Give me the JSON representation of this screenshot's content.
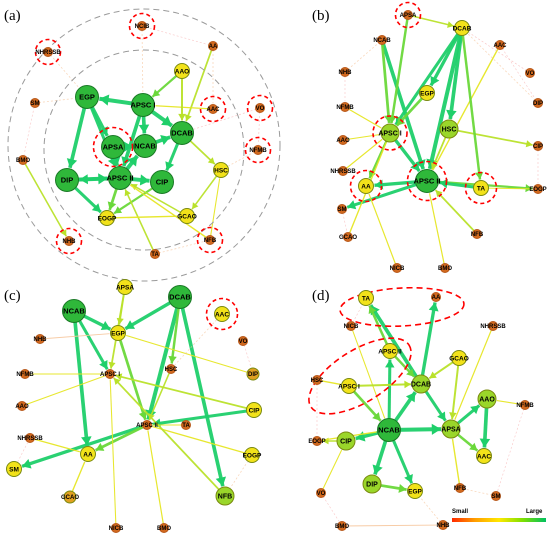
{
  "figure": {
    "legend": {
      "small_label": "Small",
      "large_label": "Large",
      "colors": [
        "#ff2a00",
        "#ffa000",
        "#ffe800",
        "#7fe000",
        "#00c060"
      ]
    },
    "palette": {
      "big": "#2fb83a",
      "mid": "#9ad62a",
      "small": "#f2e21a",
      "tiny": "#e0a020",
      "dot": "#d2691e",
      "highlight": "#ff0000"
    },
    "panels": [
      {
        "label": "(a)",
        "nodes": [
          {
            "id": "NCIB",
            "size": "dot",
            "hl": true
          },
          {
            "id": "AA",
            "size": "dot"
          },
          {
            "id": "NHRSSB",
            "size": "dot",
            "hl": true
          },
          {
            "id": "AAO",
            "size": "small"
          },
          {
            "id": "EGP",
            "size": "big"
          },
          {
            "id": "APSC I",
            "size": "big"
          },
          {
            "id": "SM",
            "size": "dot"
          },
          {
            "id": "AAC",
            "size": "dot",
            "hl": true
          },
          {
            "id": "VO",
            "size": "dot",
            "hl": true
          },
          {
            "id": "DCAB",
            "size": "big"
          },
          {
            "id": "APSA",
            "size": "big",
            "hl": true
          },
          {
            "id": "NCAB",
            "size": "big"
          },
          {
            "id": "NFMB",
            "size": "dot",
            "hl": true
          },
          {
            "id": "BMO",
            "size": "dot"
          },
          {
            "id": "APSC II",
            "size": "big"
          },
          {
            "id": "DIP",
            "size": "big"
          },
          {
            "id": "CIP",
            "size": "big"
          },
          {
            "id": "HSC",
            "size": "small"
          },
          {
            "id": "EOGP",
            "size": "small"
          },
          {
            "id": "GCAO",
            "size": "small"
          },
          {
            "id": "NHB",
            "size": "dot",
            "hl": true
          },
          {
            "id": "TA",
            "size": "dot"
          },
          {
            "id": "NFB",
            "size": "dot",
            "hl": true
          }
        ]
      },
      {
        "label": "(b)",
        "nodes": [
          {
            "id": "APSA",
            "size": "dot",
            "hl": true
          },
          {
            "id": "DCAB",
            "size": "small"
          },
          {
            "id": "NCAB",
            "size": "dot"
          },
          {
            "id": "AAC",
            "size": "dot"
          },
          {
            "id": "VO",
            "size": "dot"
          },
          {
            "id": "NHB",
            "size": "dot"
          },
          {
            "id": "EGP",
            "size": "small"
          },
          {
            "id": "DIP",
            "size": "dot"
          },
          {
            "id": "NFMB",
            "size": "dot"
          },
          {
            "id": "APSC I",
            "size": "mid",
            "hl": true
          },
          {
            "id": "HSC",
            "size": "mid"
          },
          {
            "id": "AAO",
            "size": "dot"
          },
          {
            "id": "CIP",
            "size": "dot"
          },
          {
            "id": "NHRSSB",
            "size": "dot"
          },
          {
            "id": "APSC II",
            "size": "big",
            "hl": true
          },
          {
            "id": "AA",
            "size": "small",
            "hl": true
          },
          {
            "id": "TA",
            "size": "small",
            "hl": true
          },
          {
            "id": "EOGP",
            "size": "dot"
          },
          {
            "id": "SM",
            "size": "dot"
          },
          {
            "id": "NFB",
            "size": "dot"
          },
          {
            "id": "GCAO",
            "size": "dot"
          },
          {
            "id": "NICB",
            "size": "dot"
          },
          {
            "id": "BMO",
            "size": "dot"
          }
        ]
      },
      {
        "label": "(c)",
        "nodes": [
          {
            "id": "APSA",
            "size": "small"
          },
          {
            "id": "NCAB",
            "size": "big"
          },
          {
            "id": "DCAB",
            "size": "big"
          },
          {
            "id": "AAC",
            "size": "small",
            "hl": true
          },
          {
            "id": "NHB",
            "size": "dot"
          },
          {
            "id": "EGP",
            "size": "small"
          },
          {
            "id": "VO",
            "size": "dot"
          },
          {
            "id": "DIP",
            "size": "tiny"
          },
          {
            "id": "NFMB",
            "size": "dot"
          },
          {
            "id": "HSC",
            "size": "dot"
          },
          {
            "id": "APSC I",
            "size": "dot"
          },
          {
            "id": "AAO",
            "size": "dot"
          },
          {
            "id": "CIP",
            "size": "small"
          },
          {
            "id": "NHRSSB",
            "size": "dot"
          },
          {
            "id": "APSC II",
            "size": "dot"
          },
          {
            "id": "TA",
            "size": "dot"
          },
          {
            "id": "EOGP",
            "size": "small"
          },
          {
            "id": "AA",
            "size": "small"
          },
          {
            "id": "SM",
            "size": "small"
          },
          {
            "id": "GCAO",
            "size": "tiny"
          },
          {
            "id": "NFB",
            "size": "mid"
          },
          {
            "id": "NICB",
            "size": "dot"
          },
          {
            "id": "BMO",
            "size": "dot"
          }
        ]
      },
      {
        "label": "(d)",
        "nodes": [
          {
            "id": "TA",
            "size": "small"
          },
          {
            "id": "AA",
            "size": "dot"
          },
          {
            "id": "NICB",
            "size": "dot"
          },
          {
            "id": "NHRSSB",
            "size": "dot"
          },
          {
            "id": "APSC II",
            "size": "small"
          },
          {
            "id": "GCAO",
            "size": "small"
          },
          {
            "id": "HSC",
            "size": "dot"
          },
          {
            "id": "APSC I",
            "size": "small"
          },
          {
            "id": "DCAB",
            "size": "mid"
          },
          {
            "id": "AAO",
            "size": "mid"
          },
          {
            "id": "NFMB",
            "size": "dot"
          },
          {
            "id": "APSA",
            "size": "mid"
          },
          {
            "id": "NCAB",
            "size": "big"
          },
          {
            "id": "EOGP",
            "size": "dot"
          },
          {
            "id": "CIP",
            "size": "mid"
          },
          {
            "id": "AAC",
            "size": "small"
          },
          {
            "id": "DIP",
            "size": "mid"
          },
          {
            "id": "EGP",
            "size": "small"
          },
          {
            "id": "NFB",
            "size": "dot"
          },
          {
            "id": "VO",
            "size": "dot"
          },
          {
            "id": "SM",
            "size": "dot"
          },
          {
            "id": "BMO",
            "size": "dot"
          },
          {
            "id": "NHB",
            "size": "dot"
          }
        ]
      }
    ]
  }
}
